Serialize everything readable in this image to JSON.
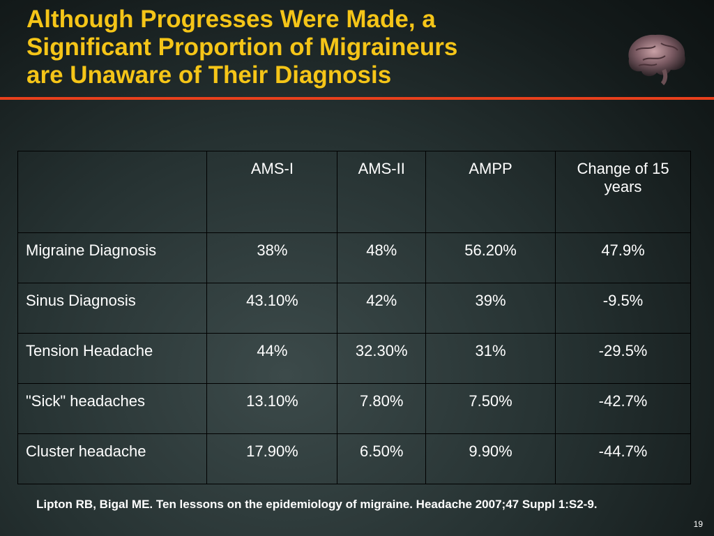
{
  "slide": {
    "title": "Although Progresses Were Made, a\nSignificant Proportion of Migraineurs\nare Unaware of Their Diagnosis",
    "citation": "Lipton RB, Bigal ME. Ten lessons on the epidemiology of migraine. Headache 2007;47 Suppl 1:S2-9.",
    "slide_number": "19",
    "colors": {
      "title": "#f5c518",
      "rule": "#e8401c",
      "text": "#ffffff"
    },
    "decoration_icon": "brain-icon"
  },
  "table": {
    "headers": [
      "",
      "AMS-I",
      "AMS-II",
      "AMPP",
      "Change of 15 years"
    ],
    "rows": [
      [
        "Migraine Diagnosis",
        "38%",
        "48%",
        "56.20%",
        "47.9%"
      ],
      [
        "Sinus Diagnosis",
        "43.10%",
        "42%",
        "39%",
        "-9.5%"
      ],
      [
        "Tension Headache",
        "44%",
        "32.30%",
        "31%",
        "-29.5%"
      ],
      [
        "\"Sick\" headaches",
        "13.10%",
        "7.80%",
        "7.50%",
        "-42.7%"
      ],
      [
        "Cluster headache",
        "17.90%",
        "6.50%",
        "9.90%",
        "-44.7%"
      ]
    ]
  }
}
